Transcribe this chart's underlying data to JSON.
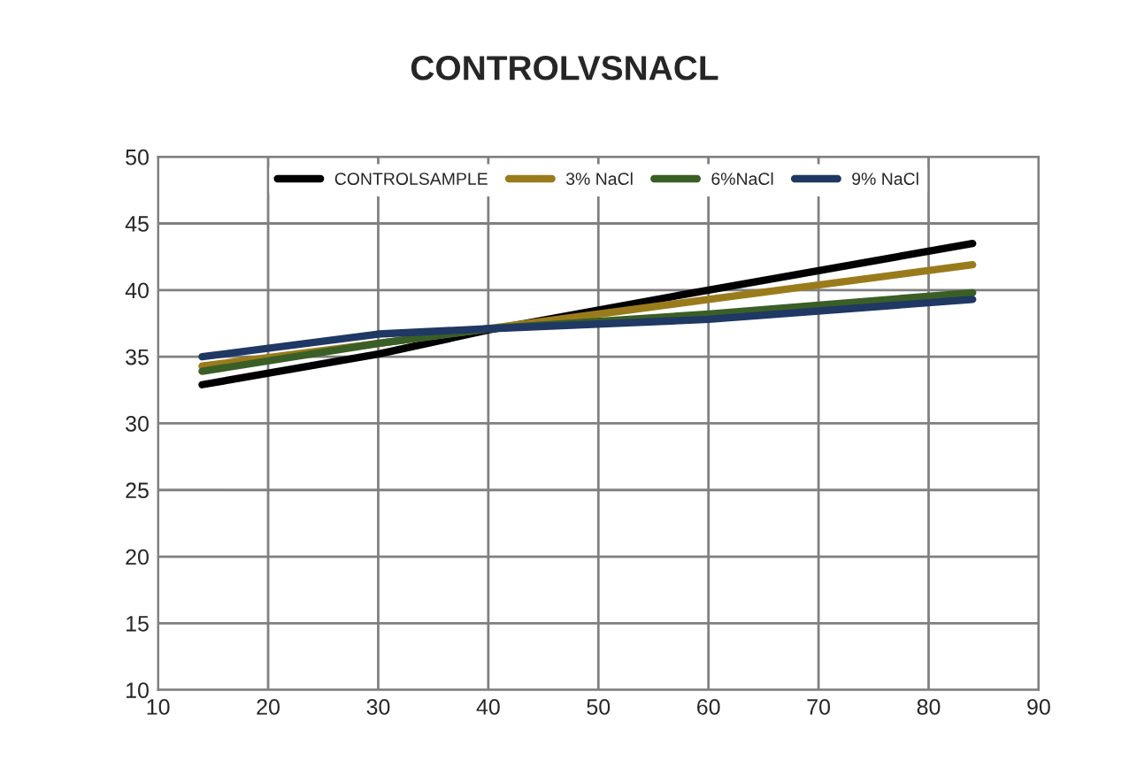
{
  "chart_data": {
    "type": "line",
    "title": "CONTROLVSNACL",
    "x": [
      14,
      30,
      40,
      60,
      84
    ],
    "series": [
      {
        "name": "CONTROLSAMPLE",
        "color": "#000000",
        "values": [
          32.9,
          35.2,
          37.0,
          40.0,
          43.5
        ]
      },
      {
        "name": "3% NaCl",
        "color": "#9a7b1c",
        "values": [
          34.3,
          36.0,
          37.1,
          39.3,
          41.9
        ]
      },
      {
        "name": "6%NaCl",
        "color": "#3a5f26",
        "values": [
          33.9,
          36.0,
          37.1,
          38.2,
          39.8
        ]
      },
      {
        "name": "9% NaCl",
        "color": "#1f3864",
        "values": [
          35.0,
          36.7,
          37.1,
          37.8,
          39.3
        ]
      }
    ],
    "xlim": [
      10,
      90
    ],
    "xticks": [
      10,
      20,
      30,
      40,
      50,
      60,
      70,
      80,
      90
    ],
    "ylim": [
      10,
      50
    ],
    "yticks": [
      10,
      15,
      20,
      25,
      30,
      35,
      40,
      45,
      50
    ],
    "grid": true,
    "legend": "top",
    "marker": "none",
    "line_style": "solid"
  }
}
